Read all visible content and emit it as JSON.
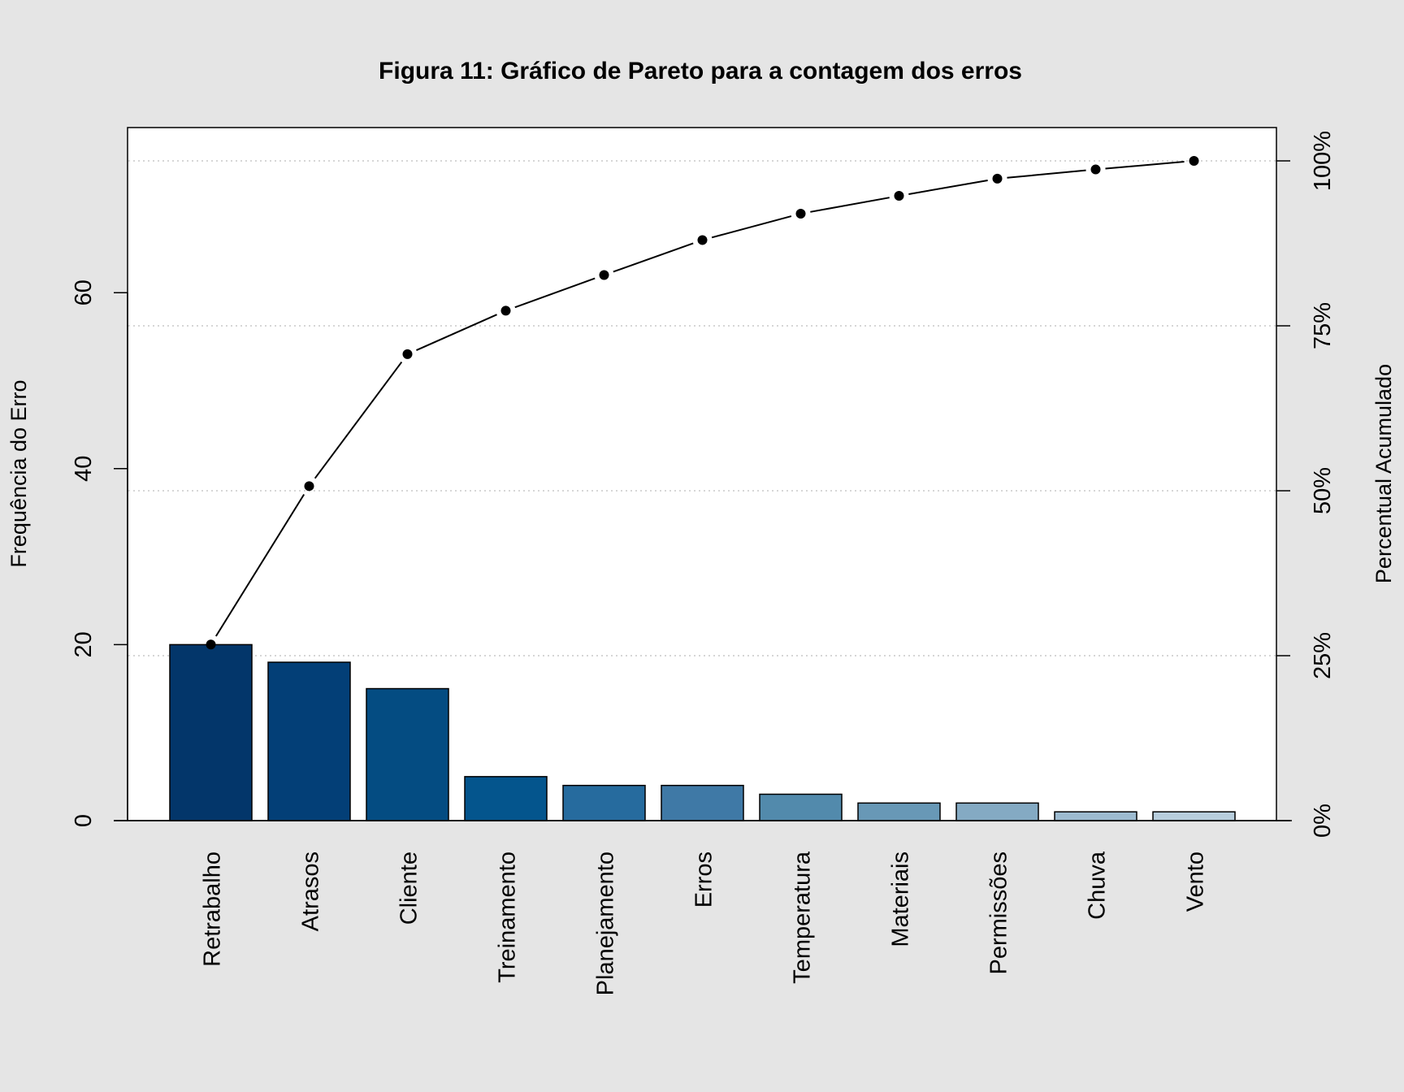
{
  "chart_data": {
    "type": "bar",
    "title": "Figura 11: Gráfico de Pareto para a contagem dos erros",
    "ylabel": "Frequência do Erro",
    "y2label": "Percentual Acumulado",
    "categories": [
      "Retrabalho",
      "Atrasos",
      "Cliente",
      "Treinamento",
      "Planejamento",
      "Erros",
      "Temperatura",
      "Materiais",
      "Permissões",
      "Chuva",
      "Vento"
    ],
    "values": [
      20,
      18,
      15,
      5,
      4,
      4,
      3,
      2,
      2,
      1,
      1
    ],
    "cumulative_percent": [
      26.7,
      50.7,
      70.7,
      77.3,
      82.7,
      88.0,
      92.0,
      94.7,
      97.3,
      98.7,
      100.0
    ],
    "ylim": [
      0,
      75
    ],
    "y_ticks": [
      0,
      20,
      40,
      60
    ],
    "y_tick_labels": [
      "0",
      "20",
      "40",
      "60"
    ],
    "y2_ticks": [
      0,
      25,
      50,
      75,
      100
    ],
    "y2_tick_labels": [
      "0%",
      "25%",
      "50%",
      "75%",
      "100%"
    ],
    "bar_colors": [
      "#03366a",
      "#033f77",
      "#044c82",
      "#04558d",
      "#266b9e",
      "#3f79a6",
      "#528aac",
      "#6898b6",
      "#84aac3",
      "#9dbbd0",
      "#b8cedd"
    ],
    "grid": "dotted horizontal at secondary ticks",
    "line_color": "#000000"
  }
}
